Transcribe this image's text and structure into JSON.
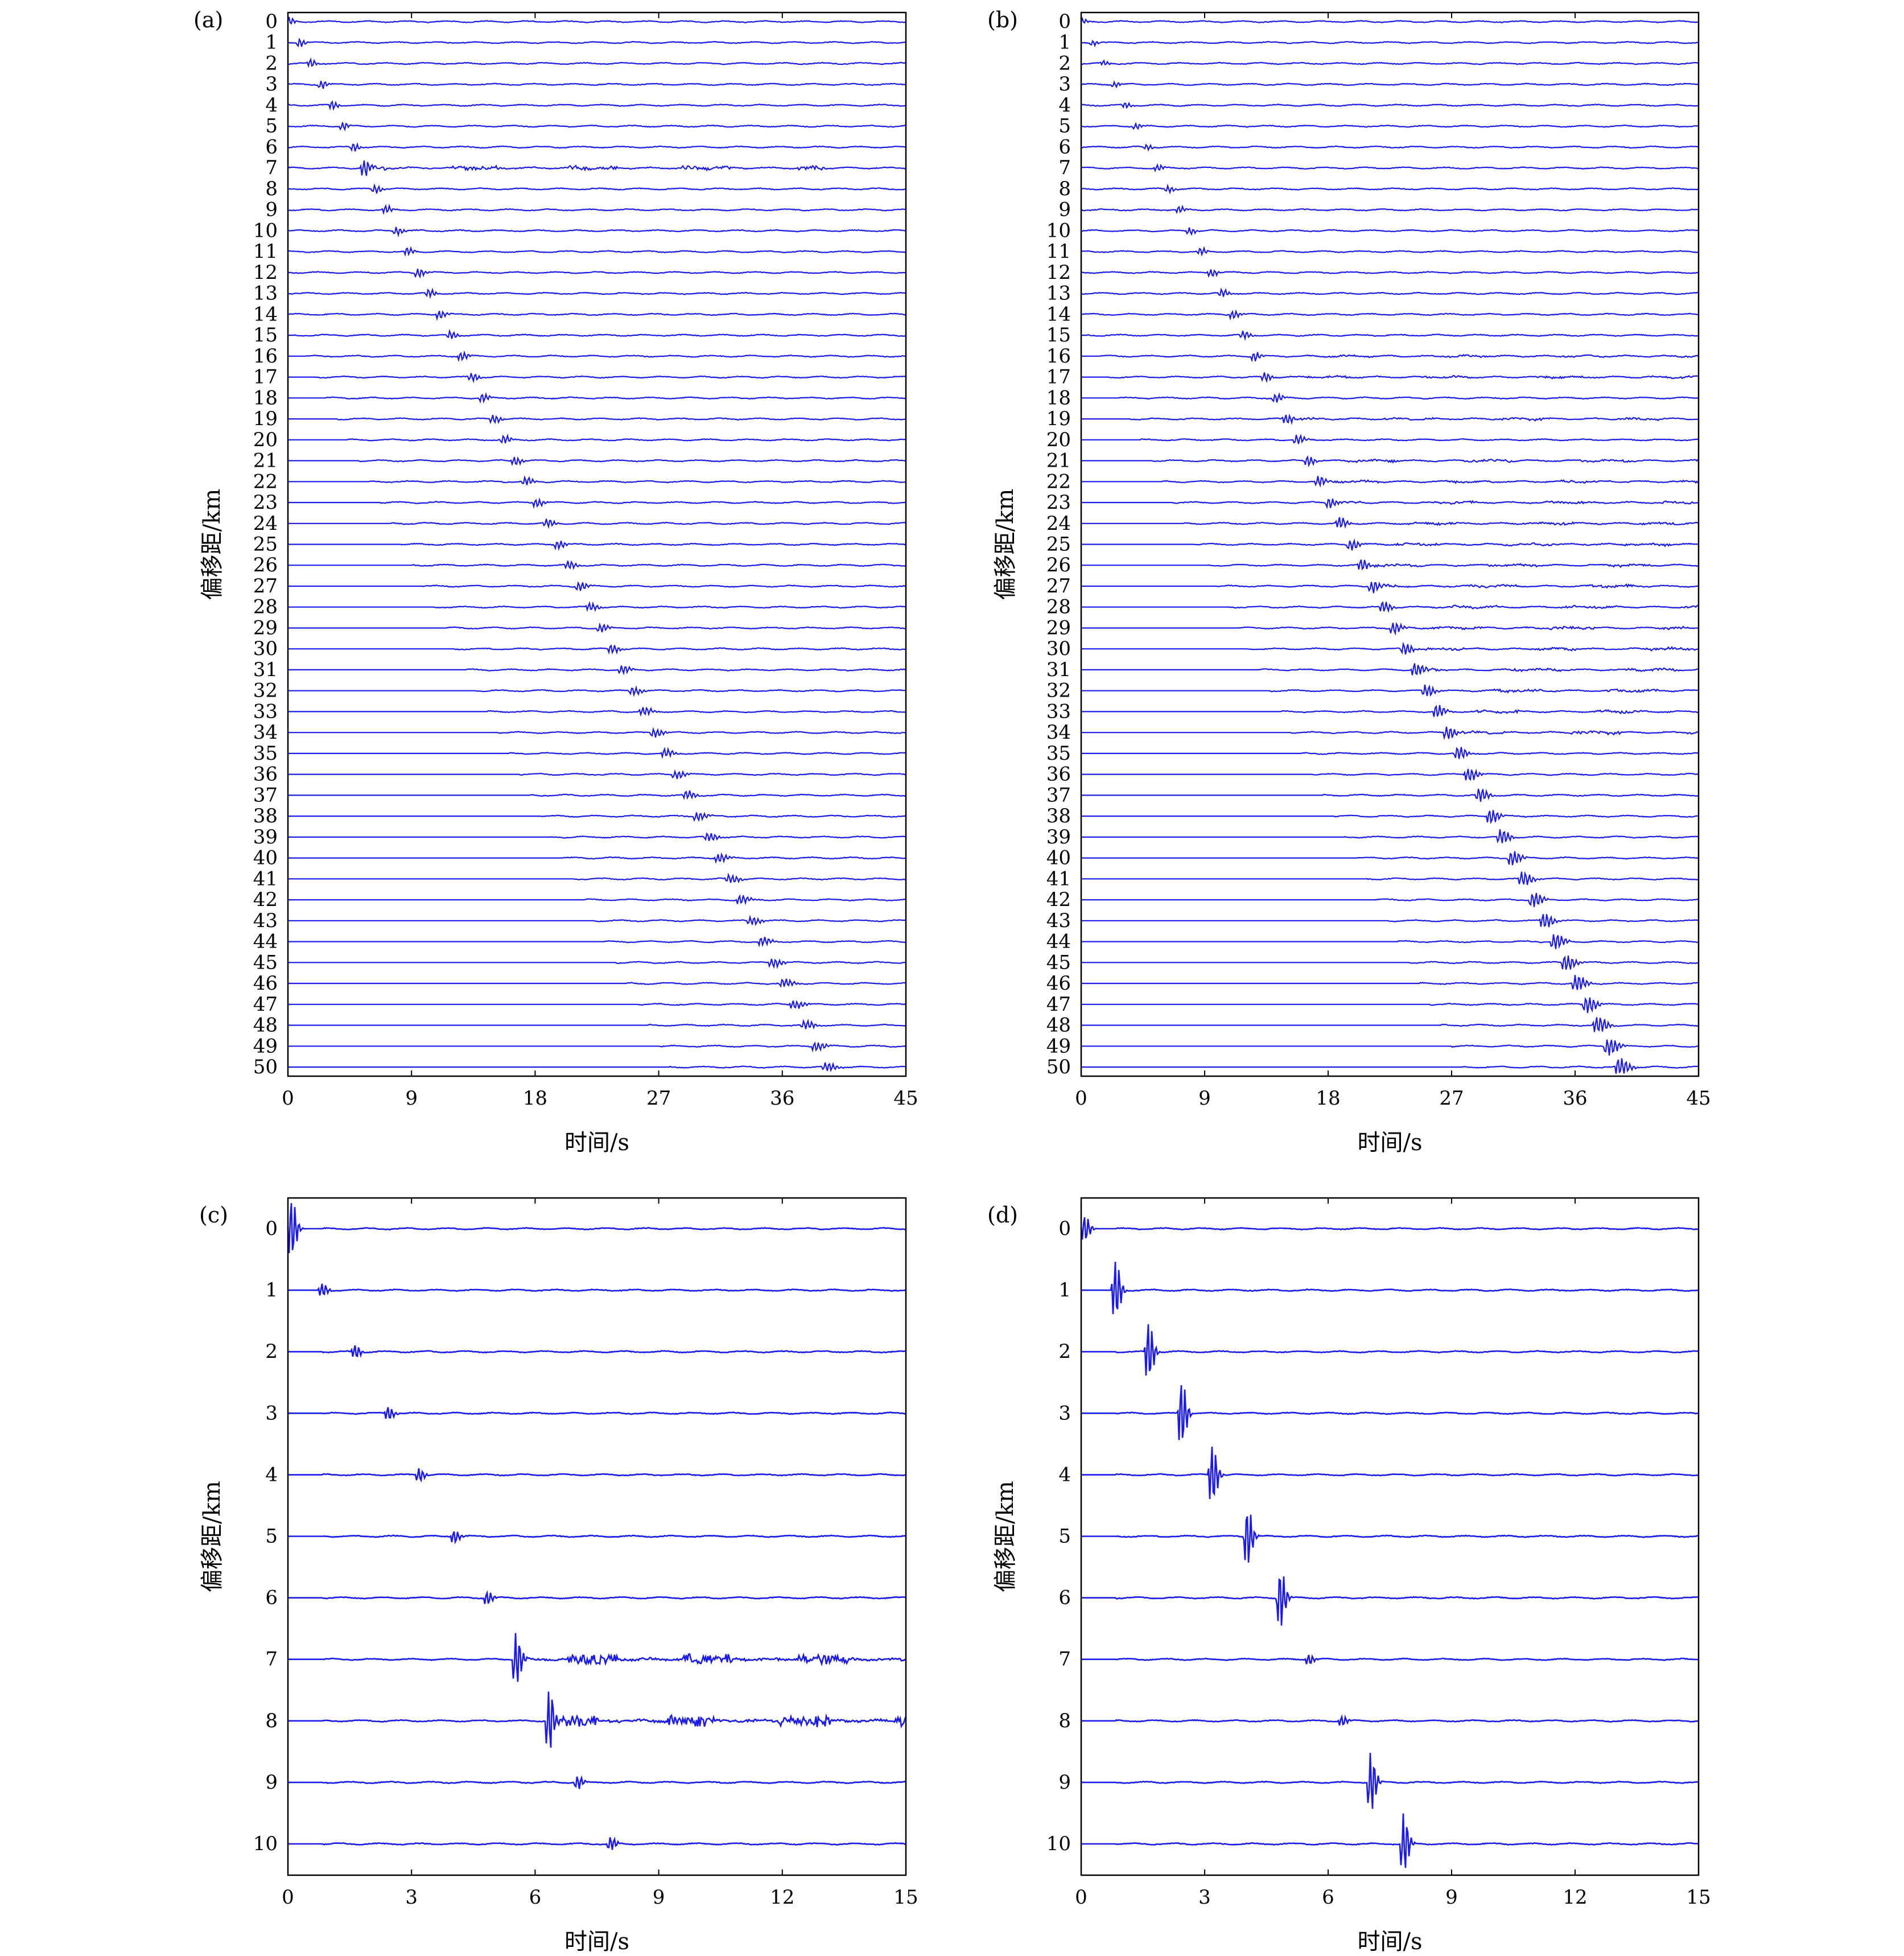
{
  "colors": {
    "trace": "#1a1aee",
    "axis": "#000000",
    "background": "#ffffff"
  },
  "chart_data": [
    {
      "panel": "(a)",
      "type": "line",
      "description_ref": "seismic record section, first arrival along a straight diagonal",
      "xlabel": "时间/s",
      "ylabel": "偏移距/km",
      "xlim": [
        0,
        45
      ],
      "xticks": [
        0,
        9,
        18,
        27,
        36,
        45
      ],
      "offsets_km": [
        0,
        1,
        2,
        3,
        4,
        5,
        6,
        7,
        8,
        9,
        10,
        11,
        12,
        13,
        14,
        15,
        16,
        17,
        18,
        19,
        20,
        21,
        22,
        23,
        24,
        25,
        26,
        27,
        28,
        29,
        30,
        31,
        32,
        33,
        34,
        35,
        36,
        37,
        38,
        39,
        40,
        41,
        42,
        43,
        44,
        45,
        46,
        47,
        48,
        49,
        50
      ],
      "arrival_slope_s_per_km": 0.78,
      "arrival_start_s": 0.0,
      "wavelet_amplitude": "weak",
      "noisy_traces": [
        7
      ],
      "noise_onset_ratio": 0.2,
      "grid": false
    },
    {
      "panel": "(b)",
      "type": "line",
      "xlabel": "时间/s",
      "ylabel": "偏移距/km",
      "xlim": [
        0,
        45
      ],
      "xticks": [
        0,
        9,
        18,
        27,
        36,
        45
      ],
      "offsets_km": [
        0,
        1,
        2,
        3,
        4,
        5,
        6,
        7,
        8,
        9,
        10,
        11,
        12,
        13,
        14,
        15,
        16,
        17,
        18,
        19,
        20,
        21,
        22,
        23,
        24,
        25,
        26,
        27,
        28,
        29,
        30,
        31,
        32,
        33,
        34,
        35,
        36,
        37,
        38,
        39,
        40,
        41,
        42,
        43,
        44,
        45,
        46,
        47,
        48,
        49,
        50
      ],
      "arrival_slope_s_per_km": 0.79,
      "arrival_start_s": 0.0,
      "wavelet_amplitude": "strong",
      "noisy_traces": [
        16,
        17,
        19,
        21,
        22,
        23,
        24,
        25,
        26,
        27,
        28,
        29,
        30,
        31,
        32,
        33,
        34
      ],
      "noise_onset_ratio": 0.2,
      "grid": false
    },
    {
      "panel": "(c)",
      "type": "line",
      "xlabel": "时间/s",
      "ylabel": "偏移距/km",
      "xlim": [
        0,
        15
      ],
      "xticks": [
        0,
        3,
        6,
        9,
        12,
        15
      ],
      "offsets_km": [
        0,
        1,
        2,
        3,
        4,
        5,
        6,
        7,
        8,
        9,
        10
      ],
      "arrival_times_s": [
        0.05,
        0.8,
        1.6,
        2.4,
        3.15,
        4.0,
        4.8,
        5.5,
        6.3,
        7.0,
        7.8
      ],
      "arrival_amplitude_rel": [
        0.9,
        0.2,
        0.2,
        0.2,
        0.2,
        0.2,
        0.2,
        0.8,
        0.9,
        0.2,
        0.2
      ],
      "noisy_traces": [
        7,
        8
      ],
      "grid": false
    },
    {
      "panel": "(d)",
      "type": "line",
      "xlabel": "时间/s",
      "ylabel": "偏移距/km",
      "xlim": [
        0,
        15
      ],
      "xticks": [
        0,
        3,
        6,
        9,
        12,
        15
      ],
      "offsets_km": [
        0,
        1,
        2,
        3,
        4,
        5,
        6,
        7,
        8,
        9,
        10
      ],
      "arrival_times_s": [
        0.05,
        0.8,
        1.6,
        2.4,
        3.15,
        4.0,
        4.8,
        5.5,
        6.3,
        7.0,
        7.8
      ],
      "arrival_amplitude_rel": [
        0.4,
        0.9,
        0.9,
        1.0,
        0.9,
        0.9,
        0.9,
        0.15,
        0.15,
        0.9,
        0.9
      ],
      "noisy_traces": [],
      "grid": false
    }
  ]
}
